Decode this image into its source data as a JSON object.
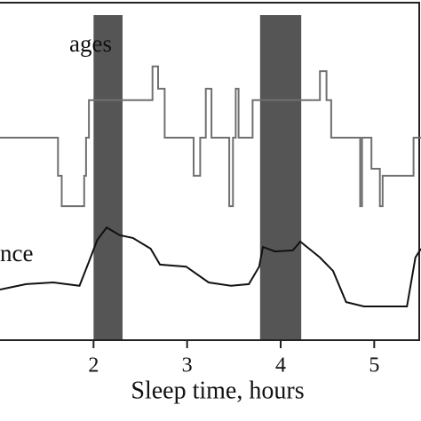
{
  "chart_data": {
    "type": "line",
    "annotations": [
      "ages",
      "nce"
    ],
    "xlabel": "Sleep time, hours",
    "xlim": [
      1.0,
      5.5
    ],
    "xticks": [
      2,
      3,
      4,
      5
    ],
    "ylim": [
      0,
      100
    ],
    "shaded_regions": [
      [
        2.0,
        2.31
      ],
      [
        3.78,
        4.22
      ]
    ],
    "shade_color": "#555555",
    "series": [
      {
        "color": "#707070",
        "x": [
          1.0,
          1.62,
          1.62,
          1.66,
          1.66,
          1.9,
          1.9,
          1.92,
          1.92,
          1.95,
          1.95,
          2.63,
          2.63,
          2.69,
          2.69,
          2.76,
          2.76,
          3.07,
          3.07,
          3.14,
          3.14,
          3.2,
          3.2,
          3.26,
          3.26,
          3.45,
          3.45,
          3.49,
          3.49,
          3.52,
          3.52,
          3.55,
          3.55,
          3.7,
          3.7,
          4.42,
          4.42,
          4.49,
          4.49,
          4.54,
          4.54,
          4.85,
          4.85,
          4.87,
          4.87,
          4.97,
          4.97,
          5.06,
          5.06,
          5.09,
          5.09,
          5.42,
          5.42,
          5.5
        ],
        "values": [
          60,
          60,
          48.7,
          48.7,
          39.7,
          39.7,
          48.7,
          48.7,
          60,
          60,
          71.1,
          71.1,
          81.1,
          81.1,
          74.5,
          74.5,
          60,
          60,
          48.7,
          48.7,
          60,
          60,
          74.5,
          74.5,
          60,
          60,
          39.7,
          39.7,
          60,
          60,
          74.5,
          74.5,
          60,
          60,
          71.1,
          71.1,
          79.7,
          79.7,
          71.1,
          71.1,
          60,
          60,
          39.7,
          39.7,
          60,
          60,
          50.8,
          50.8,
          39.7,
          39.7,
          48.7,
          48.7,
          60,
          60
        ]
      },
      {
        "color": "#111111",
        "x": [
          1.0,
          1.28,
          1.57,
          1.85,
          1.95,
          2.04,
          2.14,
          2.28,
          2.42,
          2.61,
          2.71,
          2.99,
          3.23,
          3.47,
          3.66,
          3.77,
          3.81,
          3.94,
          4.13,
          4.21,
          4.42,
          4.56,
          4.7,
          4.89,
          5.35,
          5.44,
          5.5
        ],
        "values": [
          15.0,
          16.6,
          17.1,
          16.1,
          23.2,
          29.7,
          33.4,
          31.1,
          30.3,
          27.1,
          22.4,
          21.8,
          17.1,
          16.1,
          16.6,
          21.8,
          27.6,
          26.3,
          26.6,
          29.2,
          24.5,
          20.5,
          11.3,
          10.0,
          10.0,
          24.5,
          27.1
        ]
      }
    ]
  }
}
